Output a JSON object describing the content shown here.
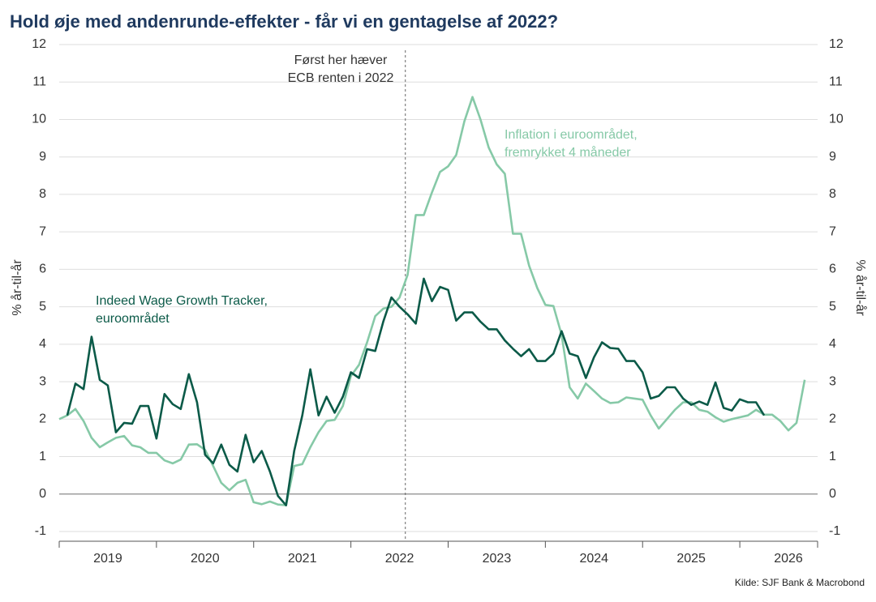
{
  "chart_data": {
    "type": "line",
    "title": "Hold øje med andenrunde-effekter - får vi en gentagelse af 2022?",
    "ylabel": "% år-til-år",
    "y2label": "% år-til-år",
    "source": "Kilde: SJF Bank & Macrobond",
    "annotations": [
      {
        "lines": [
          "Først her hæver",
          "ECB renten i 2022"
        ],
        "x": 2022.56
      },
      {
        "lines": [
          "Inflation i euroområdet,",
          "fremrykket 4 måneder"
        ]
      },
      {
        "lines": [
          "Indeed Wage Growth Tracker,",
          "euroområdet"
        ]
      }
    ],
    "xlim": [
      2019,
      2026.8
    ],
    "xticks": [
      {
        "value": 2019,
        "label": "2019"
      },
      {
        "value": 2020,
        "label": "2020"
      },
      {
        "value": 2021,
        "label": "2021"
      },
      {
        "value": 2022,
        "label": "2022"
      },
      {
        "value": 2023,
        "label": "2023"
      },
      {
        "value": 2024,
        "label": "2024"
      },
      {
        "value": 2025,
        "label": "2025"
      },
      {
        "value": 2026,
        "label": "2026"
      }
    ],
    "ylim": [
      -1,
      12
    ],
    "yticks": [
      -1,
      0,
      1,
      2,
      3,
      4,
      5,
      6,
      7,
      8,
      9,
      10,
      11,
      12
    ],
    "y2lim": [
      -1,
      12
    ],
    "y2ticks": [
      -1,
      0,
      1,
      2,
      3,
      4,
      5,
      6,
      7,
      8,
      9,
      10,
      11,
      12
    ],
    "grid": true,
    "x": [
      2019,
      2019.083,
      2019.167,
      2019.25,
      2019.333,
      2019.417,
      2019.5,
      2019.583,
      2019.667,
      2019.75,
      2019.833,
      2019.917,
      2020,
      2020.083,
      2020.167,
      2020.25,
      2020.333,
      2020.417,
      2020.5,
      2020.583,
      2020.667,
      2020.75,
      2020.833,
      2020.917,
      2021,
      2021.083,
      2021.167,
      2021.25,
      2021.333,
      2021.417,
      2021.5,
      2021.583,
      2021.667,
      2021.75,
      2021.833,
      2021.917,
      2022,
      2022.083,
      2022.167,
      2022.25,
      2022.333,
      2022.417,
      2022.5,
      2022.583,
      2022.667,
      2022.75,
      2022.833,
      2022.917,
      2023,
      2023.083,
      2023.167,
      2023.25,
      2023.333,
      2023.417,
      2023.5,
      2023.583,
      2023.667,
      2023.75,
      2023.833,
      2023.917,
      2024,
      2024.083,
      2024.167,
      2024.25,
      2024.333,
      2024.417,
      2024.5,
      2024.583,
      2024.667,
      2024.75,
      2024.833,
      2024.917,
      2025,
      2025.083,
      2025.167,
      2025.25,
      2025.333,
      2025.417,
      2025.5,
      2025.583,
      2025.667,
      2025.75,
      2025.833,
      2025.917,
      2026,
      2026.083,
      2026.167,
      2026.25,
      2026.333,
      2026.417,
      2026.5,
      2026.583,
      2026.667
    ],
    "series": [
      {
        "name": "Indeed Wage Growth Tracker, euroområdet",
        "color": "#0b5a48",
        "axis": "y",
        "values": [
          null,
          2.1,
          2.95,
          2.8,
          4.2,
          3.05,
          2.9,
          1.65,
          1.9,
          1.88,
          2.35,
          2.35,
          1.48,
          2.67,
          2.4,
          2.27,
          3.2,
          2.45,
          1.05,
          0.82,
          1.32,
          0.78,
          0.6,
          1.58,
          0.85,
          1.15,
          0.6,
          -0.05,
          -0.3,
          1.15,
          2.1,
          3.33,
          2.1,
          2.6,
          2.17,
          2.6,
          3.25,
          3.1,
          3.87,
          3.82,
          4.6,
          5.25,
          5.0,
          4.8,
          4.55,
          5.75,
          5.15,
          5.53,
          5.45,
          4.63,
          4.85,
          4.85,
          4.6,
          4.4,
          4.4,
          4.1,
          3.88,
          3.68,
          3.87,
          3.55,
          3.55,
          3.75,
          4.35,
          3.75,
          3.68,
          3.1,
          3.65,
          4.05,
          3.9,
          3.88,
          3.55,
          3.55,
          3.25,
          2.55,
          2.62,
          2.85,
          2.85,
          2.55,
          2.38,
          2.47,
          2.38,
          2.98,
          2.3,
          2.23,
          2.53,
          2.45,
          2.45,
          2.1,
          null,
          null,
          null,
          null,
          null
        ]
      },
      {
        "name": "Inflation i euroområdet, fremrykket 4 måneder",
        "color": "#86c9a7",
        "axis": "y2",
        "values": [
          2.0,
          2.1,
          2.27,
          1.95,
          1.5,
          1.25,
          1.38,
          1.5,
          1.55,
          1.3,
          1.25,
          1.1,
          1.1,
          0.9,
          0.82,
          0.92,
          1.32,
          1.33,
          1.18,
          0.75,
          0.3,
          0.1,
          0.3,
          0.38,
          -0.22,
          -0.27,
          -0.2,
          -0.28,
          -0.3,
          0.75,
          0.8,
          1.25,
          1.65,
          1.95,
          1.98,
          2.35,
          3.15,
          3.45,
          4.05,
          4.75,
          4.95,
          5.0,
          5.25,
          5.85,
          7.45,
          7.45,
          8.05,
          8.6,
          8.75,
          9.05,
          9.95,
          10.6,
          10.0,
          9.25,
          8.8,
          8.55,
          6.95,
          6.95,
          6.1,
          5.5,
          5.05,
          5.02,
          4.25,
          2.85,
          2.55,
          2.95,
          2.75,
          2.55,
          2.43,
          2.45,
          2.58,
          2.55,
          2.52,
          2.1,
          1.75,
          2.0,
          2.25,
          2.45,
          2.45,
          2.25,
          2.2,
          2.05,
          1.93,
          2.0,
          2.05,
          2.1,
          2.25,
          2.12,
          2.12,
          1.95,
          1.7,
          1.9,
          3.05
        ]
      }
    ]
  }
}
